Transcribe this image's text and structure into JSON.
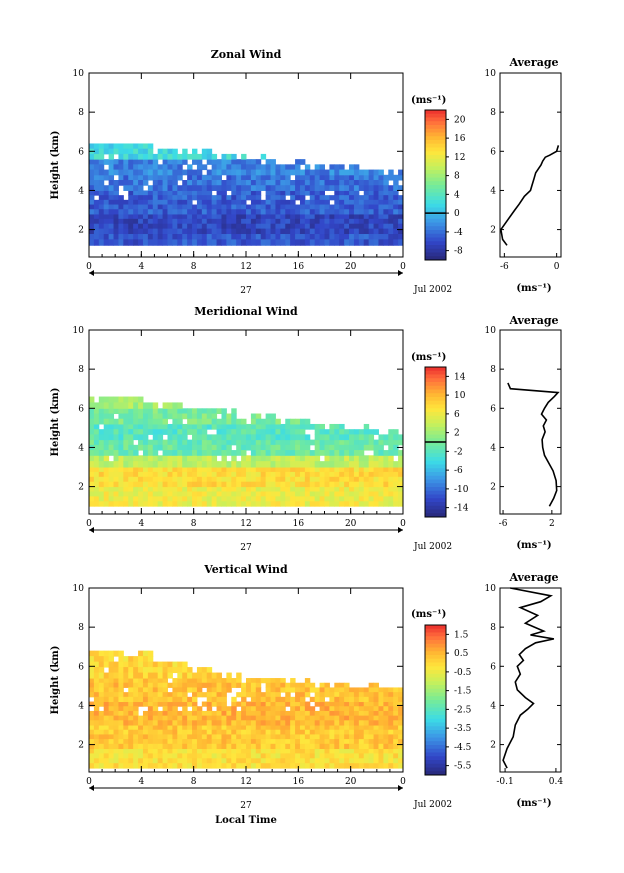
{
  "chart_data": [
    {
      "type": "heatmap",
      "id": "zonal",
      "title": "Zonal Wind",
      "ylabel": "Height (km)",
      "xlim": [
        0,
        24
      ],
      "ylim": [
        0.6,
        10
      ],
      "xticks": [
        "0",
        "4",
        "8",
        "12",
        "16",
        "20",
        "0"
      ],
      "yticks": [
        "2",
        "4",
        "6",
        "8",
        "10"
      ],
      "day_label": "27",
      "date_label": "Jul 2002",
      "colorbar": {
        "unit": "(ms⁻¹)",
        "ticks": [
          "-8",
          "-4",
          "0",
          "4",
          "8",
          "12",
          "16",
          "20"
        ],
        "min": -10,
        "max": 22,
        "marker": 0
      },
      "rows": [
        {
          "ylo": 1.2,
          "yhi": 1.8,
          "val": -5.5
        },
        {
          "ylo": 1.8,
          "yhi": 2.8,
          "val": -6.5
        },
        {
          "ylo": 2.8,
          "yhi": 4.0,
          "val": -5.0
        },
        {
          "ylo": 4.0,
          "yhi": 4.8,
          "val": -4.0
        },
        {
          "ylo": 4.8,
          "yhi": 5.6,
          "val": -3.0
        },
        {
          "ylo": 5.6,
          "yhi": 6.4,
          "val": 2.0
        }
      ],
      "top_edge_km": [
        6.5,
        6.5,
        6.1,
        6.0,
        5.8,
        5.6,
        5.4,
        5.3,
        5.2,
        5.0
      ],
      "profile": {
        "title": "Average",
        "xlim": [
          -6.5,
          0.5
        ],
        "xticks": [
          "-6",
          "0"
        ],
        "xtick_values": [
          -6,
          0
        ],
        "unit": "(ms⁻¹)",
        "x": [
          -5.7,
          -6.2,
          -6.4,
          -5.6,
          -4.8,
          -4.3,
          -3.7,
          -3.0,
          -2.8,
          -2.6,
          -2.4,
          -2.1,
          -1.8,
          -1.6,
          -1.3,
          -0.8,
          0.0,
          0.2
        ],
        "y": [
          1.2,
          1.5,
          2.0,
          2.5,
          3.0,
          3.3,
          3.7,
          4.0,
          4.3,
          4.6,
          4.9,
          5.1,
          5.3,
          5.5,
          5.7,
          5.8,
          6.0,
          6.3
        ]
      }
    },
    {
      "type": "heatmap",
      "id": "meridional",
      "title": "Meridional Wind",
      "ylabel": "Height (km)",
      "xlim": [
        0,
        24
      ],
      "ylim": [
        0.6,
        10
      ],
      "xticks": [
        "0",
        "4",
        "8",
        "12",
        "16",
        "20",
        "0"
      ],
      "yticks": [
        "2",
        "4",
        "6",
        "8",
        "10"
      ],
      "day_label": "27",
      "date_label": "Jul 2002",
      "colorbar": {
        "unit": "(ms⁻¹)",
        "ticks": [
          "-14",
          "-10",
          "-6",
          "-2",
          "2",
          "6",
          "10",
          "14"
        ],
        "min": -16,
        "max": 16,
        "marker": 0
      },
      "rows": [
        {
          "ylo": 1.0,
          "yhi": 2.0,
          "val": 6.0
        },
        {
          "ylo": 2.0,
          "yhi": 3.0,
          "val": 7.5
        },
        {
          "ylo": 3.0,
          "yhi": 3.6,
          "val": 3.5
        },
        {
          "ylo": 3.6,
          "yhi": 4.4,
          "val": -1.0
        },
        {
          "ylo": 4.4,
          "yhi": 5.2,
          "val": -2.0
        },
        {
          "ylo": 5.2,
          "yhi": 6.0,
          "val": 0.0
        },
        {
          "ylo": 6.0,
          "yhi": 6.6,
          "val": 2.0
        }
      ],
      "top_edge_km": [
        6.6,
        6.5,
        6.2,
        6.0,
        5.8,
        5.6,
        5.4,
        5.2,
        5.0,
        4.8
      ],
      "profile": {
        "title": "Average",
        "xlim": [
          -6.5,
          3.5
        ],
        "xticks": [
          "-6",
          "2"
        ],
        "xtick_values": [
          -6,
          2
        ],
        "unit": "(ms⁻¹)",
        "x": [
          1.6,
          2.3,
          2.8,
          2.7,
          2.2,
          1.5,
          0.8,
          0.5,
          0.4,
          0.9,
          0.6,
          1.1,
          0.3,
          0.8,
          1.4,
          2.4,
          3.0,
          -4.8,
          -5.2
        ],
        "y": [
          1.0,
          1.4,
          1.8,
          2.3,
          2.8,
          3.2,
          3.6,
          4.0,
          4.4,
          4.8,
          5.1,
          5.4,
          5.7,
          6.0,
          6.3,
          6.6,
          6.8,
          7.0,
          7.3
        ]
      }
    },
    {
      "type": "heatmap",
      "id": "vertical",
      "title": "Vertical Wind",
      "ylabel": "Height (km)",
      "xlabel": "Local Time",
      "xlim": [
        0,
        24
      ],
      "ylim": [
        0.6,
        10
      ],
      "xticks": [
        "0",
        "4",
        "8",
        "12",
        "16",
        "20",
        "0"
      ],
      "yticks": [
        "2",
        "4",
        "6",
        "8",
        "10"
      ],
      "day_label": "27",
      "date_label": "Jul 2002",
      "colorbar": {
        "unit": "(ms⁻¹)",
        "ticks": [
          "-5.5",
          "-4.5",
          "-3.5",
          "-2.5",
          "-1.5",
          "-0.5",
          "0.5",
          "1.5"
        ],
        "min": -6.0,
        "max": 2.0,
        "marker": null
      },
      "rows": [
        {
          "ylo": 0.8,
          "yhi": 1.8,
          "val": -0.2
        },
        {
          "ylo": 1.8,
          "yhi": 3.0,
          "val": 0.2
        },
        {
          "ylo": 3.0,
          "yhi": 4.2,
          "val": 0.5
        },
        {
          "ylo": 4.2,
          "yhi": 5.4,
          "val": 0.3
        },
        {
          "ylo": 5.4,
          "yhi": 6.8,
          "val": 0.0
        }
      ],
      "top_edge_km": [
        6.8,
        6.6,
        6.2,
        5.9,
        5.6,
        5.4,
        5.2,
        5.0,
        5.0,
        4.9
      ],
      "profile": {
        "title": "Average",
        "xlim": [
          -0.15,
          0.45
        ],
        "xticks": [
          "-0.1",
          "0.4"
        ],
        "xtick_values": [
          -0.1,
          0.4
        ],
        "unit": "(ms⁻¹)",
        "x": [
          -0.08,
          -0.12,
          -0.08,
          -0.02,
          0.0,
          0.05,
          0.12,
          0.18,
          0.1,
          0.02,
          0.0,
          0.05,
          0.02,
          0.08,
          0.04,
          0.1,
          0.2,
          0.38,
          0.15,
          0.28,
          0.1,
          0.22,
          0.05,
          0.25,
          0.35,
          -0.05
        ],
        "y": [
          0.8,
          1.2,
          1.8,
          2.4,
          3.0,
          3.5,
          3.8,
          4.1,
          4.4,
          4.8,
          5.2,
          5.6,
          6.0,
          6.3,
          6.6,
          6.9,
          7.2,
          7.4,
          7.6,
          7.8,
          8.2,
          8.6,
          9.0,
          9.3,
          9.6,
          10.0
        ]
      }
    }
  ]
}
